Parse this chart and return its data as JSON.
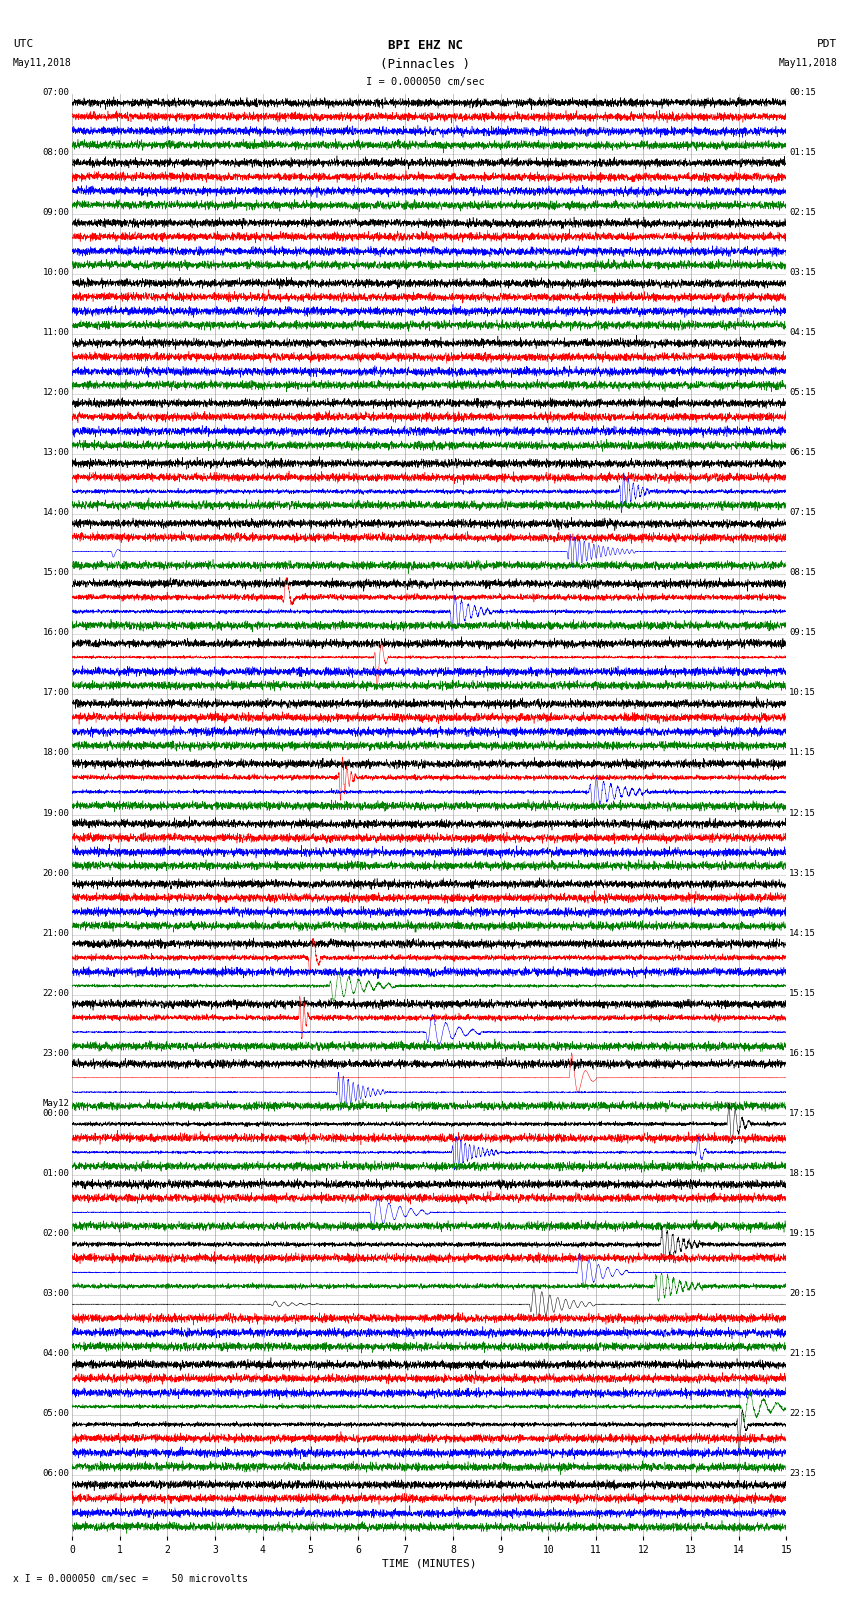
{
  "title_line1": "BPI EHZ NC",
  "title_line2": "(Pinnacles )",
  "scale_text": "I = 0.000050 cm/sec",
  "xlabel": "TIME (MINUTES)",
  "footer_text": "x I = 0.000050 cm/sec =    50 microvolts",
  "utc_labels": [
    "07:00",
    "08:00",
    "09:00",
    "10:00",
    "11:00",
    "12:00",
    "13:00",
    "14:00",
    "15:00",
    "16:00",
    "17:00",
    "18:00",
    "19:00",
    "20:00",
    "21:00",
    "22:00",
    "23:00",
    "May12\n00:00",
    "01:00",
    "02:00",
    "03:00",
    "04:00",
    "05:00",
    "06:00"
  ],
  "pdt_labels": [
    "00:15",
    "01:15",
    "02:15",
    "03:15",
    "04:15",
    "05:15",
    "06:15",
    "07:15",
    "08:15",
    "09:15",
    "10:15",
    "11:15",
    "12:15",
    "13:15",
    "14:15",
    "15:15",
    "16:15",
    "17:15",
    "18:15",
    "19:15",
    "20:15",
    "21:15",
    "22:15",
    "23:15"
  ],
  "num_rows": 24,
  "traces_per_row": 4,
  "colors": [
    "black",
    "red",
    "blue",
    "green"
  ],
  "bg_color": "white",
  "grid_color": "#888888",
  "fig_width": 8.5,
  "fig_height": 16.13,
  "xmin": 0,
  "xmax": 15,
  "seed": 42
}
